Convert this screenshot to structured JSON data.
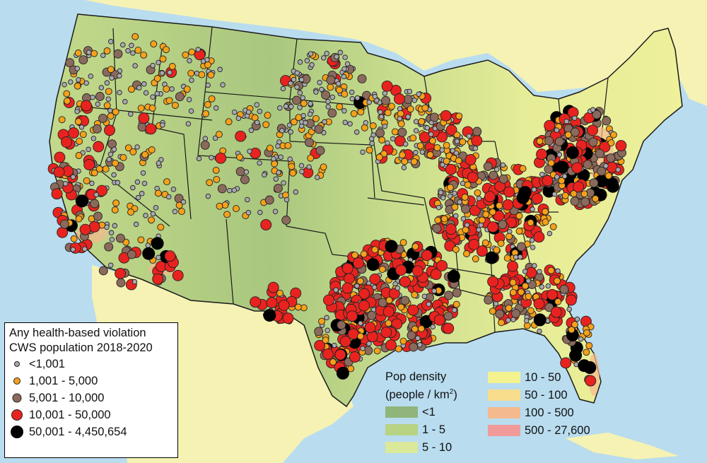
{
  "legend": {
    "title_line1": "Any health-based violation",
    "title_line2": "CWS population 2018-2020",
    "items": [
      {
        "label": "<1,001",
        "color": "#a9a9b0",
        "icon": "small-gray-dot"
      },
      {
        "label": "1,001 - 5,000",
        "color": "#f5a11a",
        "icon": "orange-dot"
      },
      {
        "label": "5,001 - 10,000",
        "color": "#8a6a5c",
        "icon": "brown-dot"
      },
      {
        "label": "10,001 - 50,000",
        "color": "#e8231f",
        "icon": "red-dot"
      },
      {
        "label": "50,001 - 4,450,654",
        "color": "#000000",
        "icon": "black-dot"
      }
    ]
  },
  "density_legend": {
    "title": "Pop density",
    "subtitle_pre": "(people / km",
    "subtitle_sup": "2",
    "subtitle_post": ")",
    "items": [
      {
        "label": "<1",
        "color": "#8fb57a"
      },
      {
        "label": "1 - 5",
        "color": "#b8d383"
      },
      {
        "label": "5 - 10",
        "color": "#dbe99a"
      },
      {
        "label": "10 - 50",
        "color": "#f4f28f"
      },
      {
        "label": "50 - 100",
        "color": "#f7dd8c"
      },
      {
        "label": "100 - 500",
        "color": "#f5b98f"
      },
      {
        "label": "500 - 27,600",
        "color": "#f09a9a"
      }
    ]
  },
  "colors": {
    "ocean": "#b9dcef",
    "land_other": "#f5f2b4",
    "state_border": "#1a1a1a"
  }
}
